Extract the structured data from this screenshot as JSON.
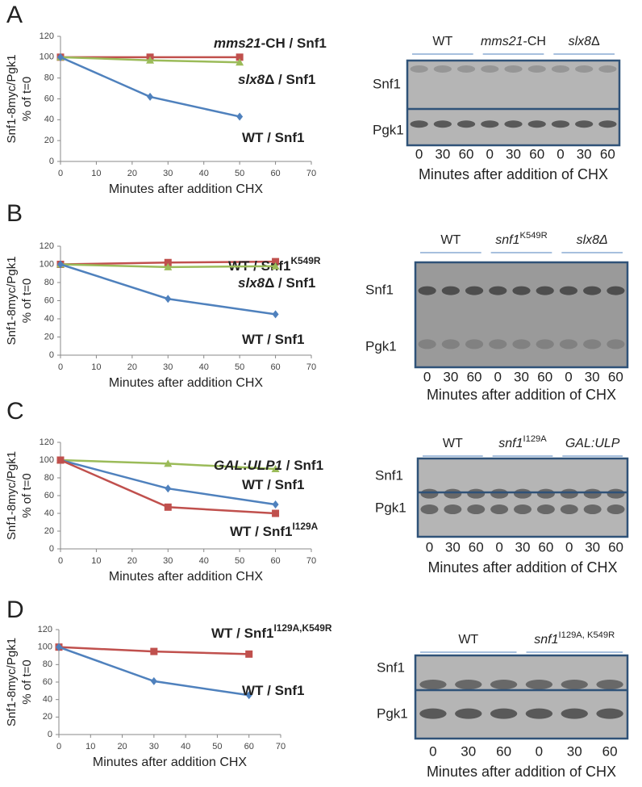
{
  "panel_letters": [
    "A",
    "B",
    "C",
    "D"
  ],
  "chart_data": [
    {
      "type": "line",
      "ylabel": [
        "Snf1-8myc/Pgk1",
        "% of t=0"
      ],
      "xlabel": "Minutes after addition CHX",
      "xlim": [
        0,
        70
      ],
      "xticks": [
        0,
        10,
        20,
        30,
        40,
        50,
        60,
        70
      ],
      "ylim": [
        0,
        120
      ],
      "yticks": [
        0,
        20,
        40,
        60,
        80,
        100,
        120
      ],
      "grid": false,
      "series": [
        {
          "name": [
            {
              "text": "mms21",
              "italic": true
            },
            {
              "text": "-CH / Snf1"
            }
          ],
          "color": "#c0504d",
          "marker": "square",
          "x": [
            0,
            25,
            50
          ],
          "values": [
            100,
            100,
            100
          ]
        },
        {
          "name": [
            {
              "text": "slx8",
              "italic": true
            },
            {
              "text": "Δ / Snf1"
            }
          ],
          "color": "#9bbb59",
          "marker": "triangle",
          "x": [
            0,
            25,
            50
          ],
          "values": [
            100,
            97,
            95
          ]
        },
        {
          "name": [
            {
              "text": "WT / Snf1"
            }
          ],
          "color": "#4f81bd",
          "marker": "diamond",
          "x": [
            0,
            25,
            50
          ],
          "values": [
            100,
            62,
            43
          ]
        }
      ]
    },
    {
      "type": "line",
      "ylabel": [
        "Snf1-8myc/Pgk1",
        "% of t=0"
      ],
      "xlabel": "Minutes after addition CHX",
      "xlim": [
        0,
        70
      ],
      "xticks": [
        0,
        10,
        20,
        30,
        40,
        50,
        60,
        70
      ],
      "ylim": [
        0,
        120
      ],
      "yticks": [
        0,
        20,
        40,
        60,
        80,
        100,
        120
      ],
      "grid": false,
      "series": [
        {
          "name": [
            {
              "text": "WT / Snf1"
            },
            {
              "text": "K549R",
              "sup": true
            }
          ],
          "color": "#c0504d",
          "marker": "square",
          "x": [
            0,
            30,
            60
          ],
          "values": [
            100,
            102,
            103
          ]
        },
        {
          "name": [
            {
              "text": "slx8",
              "italic": true
            },
            {
              "text": "Δ / Snf1"
            }
          ],
          "color": "#9bbb59",
          "marker": "triangle",
          "x": [
            0,
            30,
            60
          ],
          "values": [
            100,
            97,
            98
          ]
        },
        {
          "name": [
            {
              "text": "WT / Snf1"
            }
          ],
          "color": "#4f81bd",
          "marker": "diamond",
          "x": [
            0,
            30,
            60
          ],
          "values": [
            100,
            62,
            45
          ]
        }
      ]
    },
    {
      "type": "line",
      "ylabel": [
        "Snf1-8myc/Pgk1",
        "% of t=0"
      ],
      "xlabel": "Minutes after addition CHX",
      "xlim": [
        0,
        70
      ],
      "xticks": [
        0,
        10,
        20,
        30,
        40,
        50,
        60,
        70
      ],
      "ylim": [
        0,
        120
      ],
      "yticks": [
        0,
        20,
        40,
        60,
        80,
        100,
        120
      ],
      "grid": false,
      "series": [
        {
          "name": [
            {
              "text": "GAL",
              "italic": true
            },
            {
              "text": ":"
            },
            {
              "text": "ULP1",
              "italic": true
            },
            {
              "text": " / Snf1"
            }
          ],
          "color": "#9bbb59",
          "marker": "triangle",
          "x": [
            0,
            30,
            60
          ],
          "values": [
            100,
            96,
            90
          ]
        },
        {
          "name": [
            {
              "text": "WT / Snf1"
            }
          ],
          "color": "#4f81bd",
          "marker": "diamond",
          "x": [
            0,
            30,
            60
          ],
          "values": [
            100,
            68,
            50
          ]
        },
        {
          "name": [
            {
              "text": "WT / Snf1"
            },
            {
              "text": "I129A",
              "sup": true
            }
          ],
          "color": "#c0504d",
          "marker": "square",
          "x": [
            0,
            30,
            60
          ],
          "values": [
            100,
            47,
            40
          ]
        }
      ]
    },
    {
      "type": "line",
      "ylabel": [
        "Snf1-8myc/Pgk1",
        "% of t=0"
      ],
      "xlabel": "Minutes after addition CHX",
      "xlim": [
        0,
        70
      ],
      "xticks": [
        0,
        10,
        20,
        30,
        40,
        50,
        60,
        70
      ],
      "ylim": [
        0,
        120
      ],
      "yticks": [
        0,
        20,
        40,
        60,
        80,
        100,
        120
      ],
      "grid": false,
      "series": [
        {
          "name": [
            {
              "text": "WT / Snf1"
            },
            {
              "text": "I129A,K549R",
              "sup": true
            }
          ],
          "color": "#c0504d",
          "marker": "square",
          "x": [
            0,
            30,
            60
          ],
          "values": [
            100,
            95,
            92
          ]
        },
        {
          "name": [
            {
              "text": "WT / Snf1"
            }
          ],
          "color": "#4f81bd",
          "marker": "diamond",
          "x": [
            0,
            30,
            60
          ],
          "values": [
            100,
            61,
            45
          ]
        }
      ]
    }
  ],
  "blots": [
    {
      "groups": [
        [
          {
            "text": "WT"
          }
        ],
        [
          {
            "text": "mms21",
            "italic": true
          },
          {
            "text": "-CH"
          }
        ],
        [
          {
            "text": "slx8",
            "italic": true
          },
          {
            "text": "Δ"
          }
        ]
      ],
      "rows": [
        "Snf1",
        "Pgk1"
      ],
      "lanes": [
        "0",
        "30",
        "60",
        "0",
        "30",
        "60",
        "0",
        "30",
        "60"
      ],
      "caption": "Minutes after addition of CHX"
    },
    {
      "groups": [
        [
          {
            "text": "WT"
          }
        ],
        [
          {
            "text": "snf1",
            "italic": true
          },
          {
            "text": "K549R",
            "sup": true
          }
        ],
        [
          {
            "text": "slx8",
            "italic": true
          },
          {
            "text": "Δ",
            "italic": true
          }
        ]
      ],
      "rows": [
        "Snf1",
        "Pgk1"
      ],
      "lanes": [
        "0",
        "30",
        "60",
        "0",
        "30",
        "60",
        "0",
        "30",
        "60"
      ],
      "caption": "Minutes after addition of CHX"
    },
    {
      "groups": [
        [
          {
            "text": "WT"
          }
        ],
        [
          {
            "text": "snf1",
            "italic": true
          },
          {
            "text": "I129A",
            "sup": true
          }
        ],
        [
          {
            "text": "GAL:ULP",
            "italic": true
          }
        ]
      ],
      "rows": [
        "Snf1",
        "Pgk1"
      ],
      "lanes": [
        "0",
        "30",
        "60",
        "0",
        "30",
        "60",
        "0",
        "30",
        "60"
      ],
      "caption": "Minutes after addition of CHX"
    },
    {
      "groups": [
        [
          {
            "text": "WT"
          }
        ],
        [
          {
            "text": "snf1",
            "italic": true
          },
          {
            "text": "I129A, K549R",
            "sup": true
          }
        ]
      ],
      "rows": [
        "Snf1",
        "Pgk1"
      ],
      "lanes": [
        "0",
        "30",
        "60",
        "0",
        "30",
        "60"
      ],
      "caption": "Minutes after addition of CHX"
    }
  ]
}
